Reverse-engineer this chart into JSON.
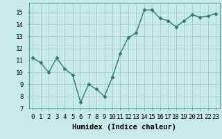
{
  "x": [
    0,
    1,
    2,
    3,
    4,
    5,
    6,
    7,
    8,
    9,
    10,
    11,
    12,
    13,
    14,
    15,
    16,
    17,
    18,
    19,
    20,
    21,
    22,
    23
  ],
  "y": [
    11.2,
    10.8,
    10.0,
    11.2,
    10.3,
    9.8,
    7.5,
    9.0,
    8.6,
    8.0,
    9.6,
    11.6,
    12.9,
    13.3,
    15.2,
    15.2,
    14.5,
    14.3,
    13.8,
    14.3,
    14.8,
    14.6,
    14.7,
    14.9
  ],
  "line_color": "#2d7d6e",
  "marker": "D",
  "marker_size": 2.5,
  "bg_color": "#c8eae8",
  "grid_color": "#a0ccc8",
  "xlabel": "Humidex (Indice chaleur)",
  "xlim": [
    -0.5,
    23.5
  ],
  "ylim": [
    7,
    15.8
  ],
  "yticks": [
    7,
    8,
    9,
    10,
    11,
    12,
    13,
    14,
    15
  ],
  "xticks": [
    0,
    1,
    2,
    3,
    4,
    5,
    6,
    7,
    8,
    9,
    10,
    11,
    12,
    13,
    14,
    15,
    16,
    17,
    18,
    19,
    20,
    21,
    22,
    23
  ],
  "xtick_labels": [
    "0",
    "1",
    "2",
    "3",
    "4",
    "5",
    "6",
    "7",
    "8",
    "9",
    "10",
    "11",
    "12",
    "13",
    "14",
    "15",
    "16",
    "17",
    "18",
    "19",
    "20",
    "21",
    "22",
    "23"
  ],
  "tick_fontsize": 6.5,
  "xlabel_fontsize": 7.5,
  "line_width": 1.0,
  "spine_color": "#5a9e98"
}
